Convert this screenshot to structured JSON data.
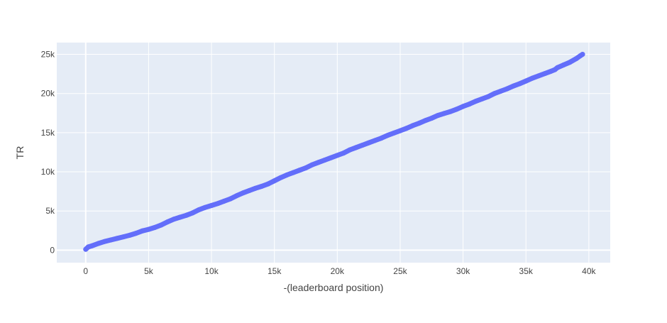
{
  "chart_data": {
    "type": "scatter",
    "mode": "lines+markers",
    "title": "",
    "xlabel": "-(leaderboard position)",
    "ylabel": "TR",
    "xlim": [
      -2300,
      41700
    ],
    "ylim": [
      -1600,
      26500
    ],
    "x_ticks": [
      0,
      5000,
      10000,
      15000,
      20000,
      25000,
      30000,
      35000,
      40000
    ],
    "x_tick_labels": [
      "0",
      "5k",
      "10k",
      "15k",
      "20k",
      "25k",
      "30k",
      "35k",
      "40k"
    ],
    "y_ticks": [
      0,
      5000,
      10000,
      15000,
      20000,
      25000
    ],
    "y_tick_labels": [
      "0",
      "5k",
      "10k",
      "15k",
      "20k",
      "25k"
    ],
    "grid": true,
    "legend": "none",
    "colors": {
      "series": "#636efa",
      "plot_background": "#e5ecf6",
      "grid": "#ffffff",
      "tick_text": "#444444",
      "axis_title_text": "#444444"
    },
    "series": [
      {
        "x": [
          0,
          200,
          500,
          1000,
          1500,
          2000,
          2500,
          3000,
          3500,
          4000,
          4500,
          5000,
          5500,
          6000,
          6500,
          7000,
          7500,
          8000,
          8500,
          9000,
          9500,
          10000,
          10500,
          11000,
          11500,
          12000,
          12500,
          13000,
          13500,
          14000,
          14500,
          15000,
          15500,
          16000,
          16500,
          17000,
          17500,
          18000,
          18500,
          19000,
          19500,
          20000,
          20500,
          21000,
          21500,
          22000,
          22500,
          23000,
          23500,
          24000,
          24500,
          25000,
          25500,
          26000,
          26500,
          27000,
          27500,
          28000,
          28500,
          29000,
          29500,
          30000,
          30500,
          31000,
          31500,
          32000,
          32500,
          33000,
          33500,
          34000,
          34500,
          35000,
          35500,
          36000,
          36500,
          37000,
          37300,
          37500,
          38000,
          38500,
          39000,
          39300,
          39500
        ],
        "y": [
          100,
          400,
          550,
          850,
          1100,
          1300,
          1500,
          1700,
          1900,
          2150,
          2450,
          2650,
          2900,
          3200,
          3600,
          3950,
          4200,
          4450,
          4750,
          5150,
          5450,
          5700,
          5950,
          6250,
          6550,
          6950,
          7300,
          7600,
          7900,
          8150,
          8450,
          8850,
          9250,
          9600,
          9900,
          10200,
          10500,
          10900,
          11200,
          11500,
          11800,
          12100,
          12400,
          12800,
          13100,
          13400,
          13700,
          14000,
          14300,
          14650,
          14950,
          15250,
          15550,
          15900,
          16200,
          16550,
          16850,
          17200,
          17450,
          17700,
          18000,
          18350,
          18650,
          19000,
          19300,
          19600,
          20000,
          20300,
          20600,
          20950,
          21250,
          21600,
          21950,
          22250,
          22550,
          22850,
          23050,
          23300,
          23650,
          24000,
          24450,
          24800,
          25000
        ]
      }
    ]
  }
}
